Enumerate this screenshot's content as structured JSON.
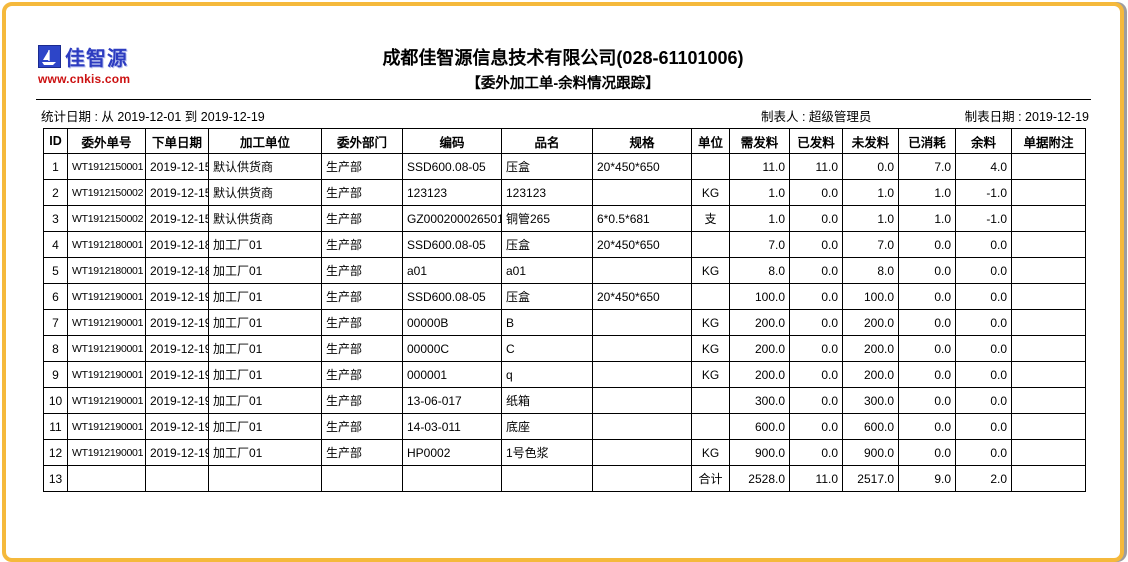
{
  "page": {
    "logo": {
      "brand": "佳智源",
      "url": "www.cnkis.com",
      "icon": "sailboat-icon"
    },
    "title": "成都佳智源信息技术有限公司(028-61101006)",
    "subtitle": "【委外加工单-余料情况跟踪】",
    "meta": {
      "stat_date": "统计日期 : 从 2019-12-01 到 2019-12-19",
      "preparer": "制表人 : 超级管理员",
      "report_date": "制表日期 : 2019-12-19"
    }
  },
  "colors": {
    "frame_border": "#F5B93C",
    "frame_shadow": "#9d9d9f",
    "logo_blue": "#2d3cc0",
    "logo_url_red": "#cc1111",
    "table_border": "#000000"
  },
  "table": {
    "headers": [
      "ID",
      "委外单号",
      "下单日期",
      "加工单位",
      "委外部门",
      "编码",
      "品名",
      "规格",
      "单位",
      "需发料",
      "已发料",
      "未发料",
      "已消耗",
      "余料",
      "单据附注"
    ],
    "rows": [
      [
        "1",
        "WT1912150001",
        "2019-12-15",
        "默认供货商",
        "生产部",
        "SSD600.08-05",
        "压盒",
        "20*450*650",
        "",
        "11.0",
        "11.0",
        "0.0",
        "7.0",
        "4.0",
        ""
      ],
      [
        "2",
        "WT1912150002",
        "2019-12-15",
        "默认供货商",
        "生产部",
        "123123",
        "123123",
        "",
        "KG",
        "1.0",
        "0.0",
        "1.0",
        "1.0",
        "-1.0",
        ""
      ],
      [
        "3",
        "WT1912150002",
        "2019-12-15",
        "默认供货商",
        "生产部",
        "GZ000200026501",
        "铜管265",
        "6*0.5*681",
        "支",
        "1.0",
        "0.0",
        "1.0",
        "1.0",
        "-1.0",
        ""
      ],
      [
        "4",
        "WT1912180001",
        "2019-12-18",
        "加工厂01",
        "生产部",
        "SSD600.08-05",
        "压盒",
        "20*450*650",
        "",
        "7.0",
        "0.0",
        "7.0",
        "0.0",
        "0.0",
        ""
      ],
      [
        "5",
        "WT1912180001",
        "2019-12-18",
        "加工厂01",
        "生产部",
        "a01",
        "a01",
        "",
        "KG",
        "8.0",
        "0.0",
        "8.0",
        "0.0",
        "0.0",
        ""
      ],
      [
        "6",
        "WT1912190001",
        "2019-12-19",
        "加工厂01",
        "生产部",
        "SSD600.08-05",
        "压盒",
        "20*450*650",
        "",
        "100.0",
        "0.0",
        "100.0",
        "0.0",
        "0.0",
        ""
      ],
      [
        "7",
        "WT1912190001",
        "2019-12-19",
        "加工厂01",
        "生产部",
        "00000B",
        "B",
        "",
        "KG",
        "200.0",
        "0.0",
        "200.0",
        "0.0",
        "0.0",
        ""
      ],
      [
        "8",
        "WT1912190001",
        "2019-12-19",
        "加工厂01",
        "生产部",
        "00000C",
        "C",
        "",
        "KG",
        "200.0",
        "0.0",
        "200.0",
        "0.0",
        "0.0",
        ""
      ],
      [
        "9",
        "WT1912190001",
        "2019-12-19",
        "加工厂01",
        "生产部",
        "000001",
        "q",
        "",
        "KG",
        "200.0",
        "0.0",
        "200.0",
        "0.0",
        "0.0",
        ""
      ],
      [
        "10",
        "WT1912190001",
        "2019-12-19",
        "加工厂01",
        "生产部",
        "13-06-017",
        "纸箱",
        "",
        "",
        "300.0",
        "0.0",
        "300.0",
        "0.0",
        "0.0",
        ""
      ],
      [
        "11",
        "WT1912190001",
        "2019-12-19",
        "加工厂01",
        "生产部",
        "14-03-011",
        "底座",
        "",
        "",
        "600.0",
        "0.0",
        "600.0",
        "0.0",
        "0.0",
        ""
      ],
      [
        "12",
        "WT1912190001",
        "2019-12-19",
        "加工厂01",
        "生产部",
        "HP0002",
        "1号色浆",
        "",
        "KG",
        "900.0",
        "0.0",
        "900.0",
        "0.0",
        "0.0",
        ""
      ],
      [
        "13",
        "",
        "",
        "",
        "",
        "",
        "",
        "",
        "合计",
        "2528.0",
        "11.0",
        "2517.0",
        "9.0",
        "2.0",
        ""
      ]
    ]
  }
}
